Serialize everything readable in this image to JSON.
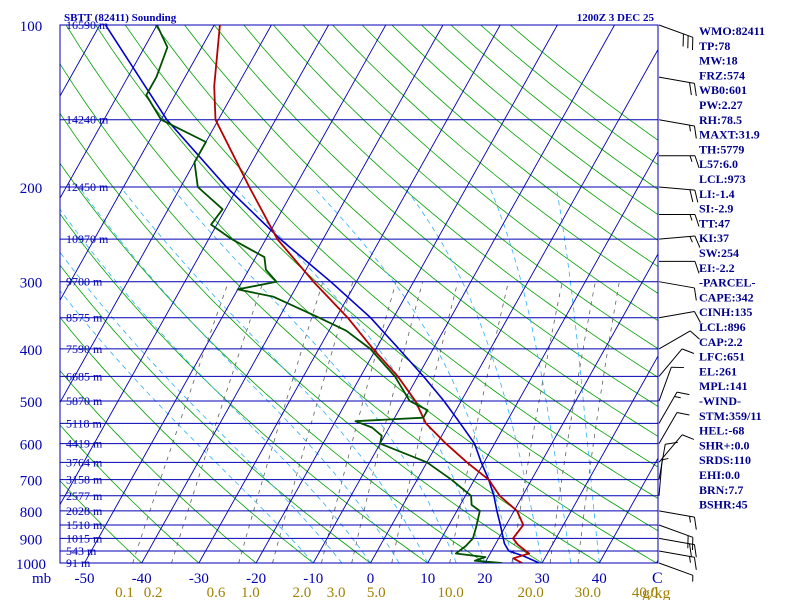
{
  "chart_data": {
    "type": "skew-t",
    "title": "SBTT (82411) Sounding",
    "valid_time": "1200Z  3 DEC 25",
    "pressure_axis_label": "mb",
    "pressure_ticks": [
      100,
      200,
      300,
      400,
      500,
      600,
      700,
      800,
      900,
      1000
    ],
    "height_levels": [
      {
        "p": 100,
        "label": "16590 m"
      },
      {
        "p": 150,
        "label": "14240 m"
      },
      {
        "p": 200,
        "label": "12450 m"
      },
      {
        "p": 250,
        "label": "10970 m"
      },
      {
        "p": 300,
        "label": "9700 m"
      },
      {
        "p": 350,
        "label": "8575 m"
      },
      {
        "p": 400,
        "label": "7590 m"
      },
      {
        "p": 450,
        "label": "6685 m"
      },
      {
        "p": 500,
        "label": "5870 m"
      },
      {
        "p": 550,
        "label": "5118 m"
      },
      {
        "p": 600,
        "label": "4419 m"
      },
      {
        "p": 650,
        "label": "3764 m"
      },
      {
        "p": 700,
        "label": "3158 m"
      },
      {
        "p": 750,
        "label": "2577 m"
      },
      {
        "p": 800,
        "label": "2028 m"
      },
      {
        "p": 850,
        "label": "1510 m"
      },
      {
        "p": 900,
        "label": "1015 m"
      },
      {
        "p": 950,
        "label": "543 m"
      },
      {
        "p": 1000,
        "label": "91 m"
      }
    ],
    "temp_ticks": [
      {
        "t": -50,
        "label": "-50"
      },
      {
        "t": -40,
        "label": "-40"
      },
      {
        "t": -30,
        "label": "-30"
      },
      {
        "t": -20,
        "label": "-20"
      },
      {
        "t": -10,
        "label": "-10"
      },
      {
        "t": 0,
        "label": "0"
      },
      {
        "t": 10,
        "label": "10"
      },
      {
        "t": 20,
        "label": "20"
      },
      {
        "t": 30,
        "label": "30"
      },
      {
        "t": 40,
        "label": "40"
      }
    ],
    "temp_unit": "C",
    "mixing_ratio_ticks": [
      "0.1",
      "0.2",
      "0.6",
      "1.0",
      "2.0",
      "3.0",
      "5.0",
      "10.0",
      "20.0",
      "30.0",
      "40.0"
    ],
    "mixing_ratio_tick_x_deg_c": [
      -43,
      -38,
      -27,
      -21,
      -12,
      -6,
      1,
      14,
      28,
      38,
      48
    ],
    "mixing_ratio_unit": "g/kg",
    "temperature_profile": [
      {
        "p": 1000,
        "t": 26.5
      },
      {
        "p": 980,
        "t": 24.5
      },
      {
        "p": 960,
        "t": 26.8
      },
      {
        "p": 925,
        "t": 24.0
      },
      {
        "p": 900,
        "t": 22.5
      },
      {
        "p": 850,
        "t": 23.0
      },
      {
        "p": 800,
        "t": 20.5
      },
      {
        "p": 750,
        "t": 16.0
      },
      {
        "p": 700,
        "t": 12.5
      },
      {
        "p": 650,
        "t": 7.0
      },
      {
        "p": 600,
        "t": 1.5
      },
      {
        "p": 550,
        "t": -4.0
      },
      {
        "p": 500,
        "t": -8.0
      },
      {
        "p": 450,
        "t": -13.5
      },
      {
        "p": 400,
        "t": -20.5
      },
      {
        "p": 350,
        "t": -28.0
      },
      {
        "p": 300,
        "t": -37.5
      },
      {
        "p": 250,
        "t": -48.0
      },
      {
        "p": 200,
        "t": -58.0
      },
      {
        "p": 150,
        "t": -70.5
      },
      {
        "p": 130,
        "t": -74.0
      },
      {
        "p": 100,
        "t": -79.0
      }
    ],
    "dewpoint_profile": [
      {
        "p": 1000,
        "t": 23.0
      },
      {
        "p": 990,
        "t": 18.0
      },
      {
        "p": 975,
        "t": 19.5
      },
      {
        "p": 960,
        "t": 14.0
      },
      {
        "p": 930,
        "t": 15.0
      },
      {
        "p": 900,
        "t": 15.5
      },
      {
        "p": 860,
        "t": 15.0
      },
      {
        "p": 800,
        "t": 14.0
      },
      {
        "p": 780,
        "t": 12.0
      },
      {
        "p": 750,
        "t": 11.0
      },
      {
        "p": 700,
        "t": 6.0
      },
      {
        "p": 650,
        "t": 0.0
      },
      {
        "p": 600,
        "t": -10.0
      },
      {
        "p": 580,
        "t": -10.5
      },
      {
        "p": 560,
        "t": -13.0
      },
      {
        "p": 545,
        "t": -16.5
      },
      {
        "p": 537,
        "t": -5.0
      },
      {
        "p": 520,
        "t": -5.0
      },
      {
        "p": 500,
        "t": -9.0
      },
      {
        "p": 450,
        "t": -14.0
      },
      {
        "p": 400,
        "t": -21.0
      },
      {
        "p": 370,
        "t": -27.0
      },
      {
        "p": 350,
        "t": -33.0
      },
      {
        "p": 320,
        "t": -43.0
      },
      {
        "p": 310,
        "t": -50.0
      },
      {
        "p": 300,
        "t": -44.0
      },
      {
        "p": 285,
        "t": -47.0
      },
      {
        "p": 270,
        "t": -48.5
      },
      {
        "p": 250,
        "t": -56.0
      },
      {
        "p": 235,
        "t": -61.0
      },
      {
        "p": 220,
        "t": -60.5
      },
      {
        "p": 200,
        "t": -67.0
      },
      {
        "p": 180,
        "t": -70.0
      },
      {
        "p": 165,
        "t": -70.0
      },
      {
        "p": 150,
        "t": -80.0
      },
      {
        "p": 135,
        "t": -85.0
      },
      {
        "p": 125,
        "t": -85.0
      },
      {
        "p": 110,
        "t": -86.0
      },
      {
        "p": 100,
        "t": -90.0
      }
    ],
    "parcel_profile": [
      {
        "p": 1000,
        "t": 29.5
      },
      {
        "p": 970,
        "t": 26.0
      },
      {
        "p": 950,
        "t": 23.0
      },
      {
        "p": 920,
        "t": 21.5
      },
      {
        "p": 900,
        "t": 20.8
      },
      {
        "p": 850,
        "t": 19.0
      },
      {
        "p": 800,
        "t": 17.0
      },
      {
        "p": 750,
        "t": 15.0
      },
      {
        "p": 700,
        "t": 12.5
      },
      {
        "p": 650,
        "t": 9.5
      },
      {
        "p": 600,
        "t": 6.5
      },
      {
        "p": 550,
        "t": 2.0
      },
      {
        "p": 500,
        "t": -3.0
      },
      {
        "p": 450,
        "t": -9.0
      },
      {
        "p": 400,
        "t": -16.0
      },
      {
        "p": 350,
        "t": -24.0
      },
      {
        "p": 300,
        "t": -34.5
      },
      {
        "p": 250,
        "t": -47.5
      },
      {
        "p": 200,
        "t": -62.0
      },
      {
        "p": 150,
        "t": -79.0
      },
      {
        "p": 100,
        "t": -99.0
      }
    ],
    "wind_barbs": [
      {
        "p": 100,
        "dir": 110,
        "spd": 30
      },
      {
        "p": 125,
        "dir": 100,
        "spd": 20
      },
      {
        "p": 150,
        "dir": 100,
        "spd": 15
      },
      {
        "p": 175,
        "dir": 90,
        "spd": 15
      },
      {
        "p": 200,
        "dir": 95,
        "spd": 20
      },
      {
        "p": 225,
        "dir": 90,
        "spd": 15
      },
      {
        "p": 250,
        "dir": 85,
        "spd": 15
      },
      {
        "p": 275,
        "dir": 90,
        "spd": 10
      },
      {
        "p": 300,
        "dir": 100,
        "spd": 10
      },
      {
        "p": 350,
        "dir": 80,
        "spd": 10
      },
      {
        "p": 400,
        "dir": 60,
        "spd": 10
      },
      {
        "p": 450,
        "dir": 40,
        "spd": 10
      },
      {
        "p": 500,
        "dir": 20,
        "spd": 10
      },
      {
        "p": 550,
        "dir": 30,
        "spd": 15
      },
      {
        "p": 600,
        "dir": 30,
        "spd": 10
      },
      {
        "p": 650,
        "dir": 40,
        "spd": 10
      },
      {
        "p": 700,
        "dir": 10,
        "spd": 10
      },
      {
        "p": 750,
        "dir": 5,
        "spd": 5
      },
      {
        "p": 800,
        "dir": 100,
        "spd": 15
      },
      {
        "p": 850,
        "dir": 110,
        "spd": 20
      },
      {
        "p": 900,
        "dir": 100,
        "spd": 20
      },
      {
        "p": 950,
        "dir": 100,
        "spd": 15
      },
      {
        "p": 1000,
        "dir": 110,
        "spd": 5
      }
    ],
    "indices": [
      "WMO:82411",
      "TP:78",
      "MW:18",
      "FRZ:574",
      "WB0:601",
      "PW:2.27",
      "RH:78.5",
      "MAXT:31.9",
      "TH:5779",
      "L57:6.0",
      "LCL:973",
      "LI:-1.4",
      "SI:-2.9",
      "TT:47",
      "KI:37",
      "SW:254",
      "EI:-2.2",
      "-PARCEL-",
      "CAPE:342",
      "CINH:135",
      "LCL:896",
      "CAP:2.2",
      "LFC:651",
      "EL:261",
      "MPL:141",
      "-WIND-",
      "STM:359/11",
      "HEL:-68",
      "SHR+:0.0",
      "SRDS:110",
      "EHI:0.0",
      "BRN:7.7",
      "BSHR:45"
    ],
    "colors": {
      "isobar": "#0000b4",
      "isotherm": "#0000b4",
      "dry_adiabat": "#00a000",
      "moist_adiabat": "#30b0ff",
      "mixing_ratio": "#606060",
      "temperature": "#b40000",
      "dewpoint": "#005000",
      "parcel": "#0000c8",
      "label_text": "#0000b4",
      "mixing_ratio_text": "#a08000"
    }
  }
}
